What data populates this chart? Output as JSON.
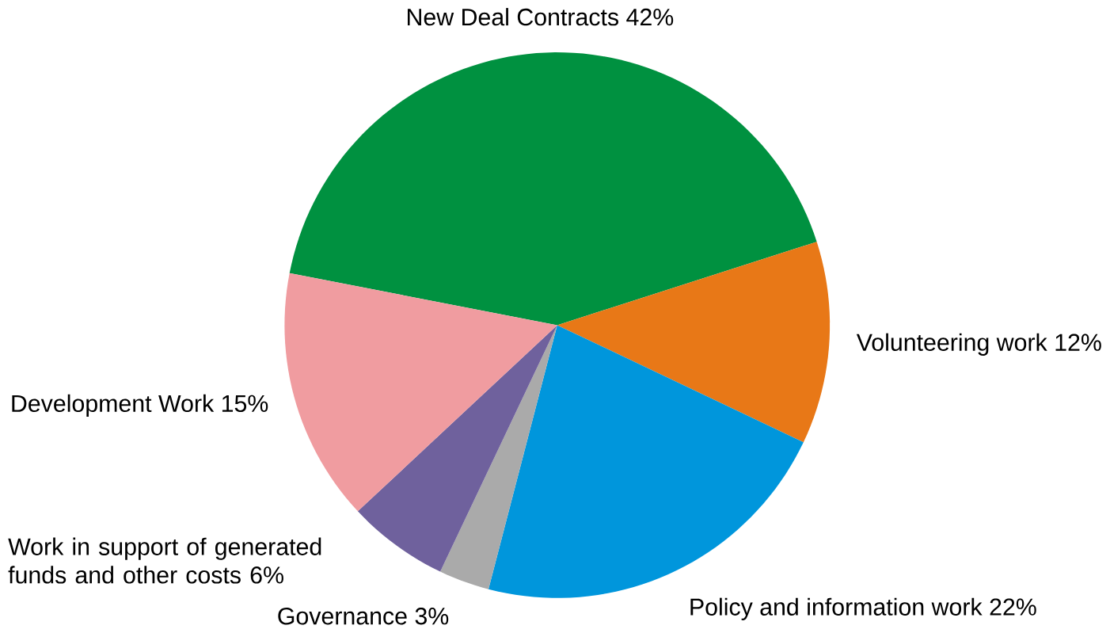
{
  "chart_data": {
    "type": "pie",
    "categories": [
      "New Deal Contracts",
      "Volunteering work",
      "Policy and information work",
      "Governance",
      "Work in support of generated funds and other costs",
      "Development Work"
    ],
    "values": [
      42,
      12,
      22,
      3,
      6,
      15
    ],
    "value_labels": [
      "42%",
      "12%",
      "22%",
      "3%",
      "6%",
      "15%"
    ],
    "colors": [
      "#009140",
      "#e87817",
      "#0096dc",
      "#aaaaaa",
      "#6f619d",
      "#f09ca0"
    ]
  }
}
